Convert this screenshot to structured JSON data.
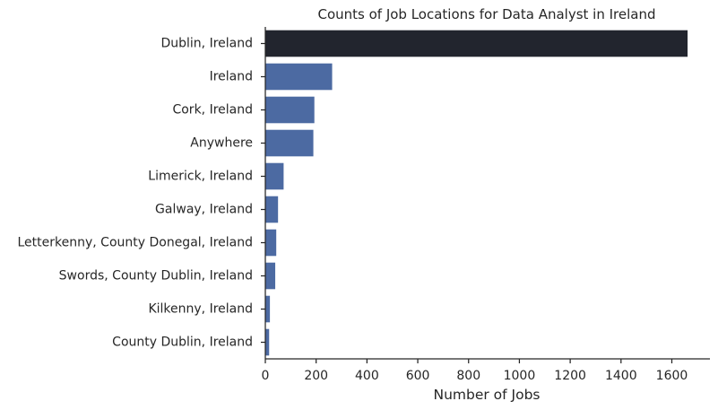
{
  "chart_data": {
    "type": "bar",
    "orientation": "horizontal",
    "title": "Counts of Job Locations for Data Analyst in Ireland",
    "xlabel": "Number of Jobs",
    "ylabel": "",
    "xlim": [
      0,
      1750
    ],
    "x_ticks": [
      0,
      200,
      400,
      600,
      800,
      1000,
      1200,
      1400,
      1600
    ],
    "categories": [
      "Dublin, Ireland",
      "Ireland",
      "Cork, Ireland",
      "Anywhere",
      "Limerick, Ireland",
      "Galway, Ireland",
      "Letterkenny, County Donegal, Ireland",
      "Swords, County Dublin, Ireland",
      "Kilkenny, Ireland",
      "County Dublin, Ireland"
    ],
    "values": [
      1662,
      263,
      193,
      189,
      72,
      50,
      43,
      39,
      18,
      15
    ],
    "bar_colors": [
      "#22252e",
      "#4c6aa2",
      "#4c6aa2",
      "#4c6aa2",
      "#4c6aa2",
      "#4c6aa2",
      "#4c6aa2",
      "#4c6aa2",
      "#4c6aa2",
      "#4c6aa2"
    ],
    "grid": false,
    "legend": "none"
  }
}
